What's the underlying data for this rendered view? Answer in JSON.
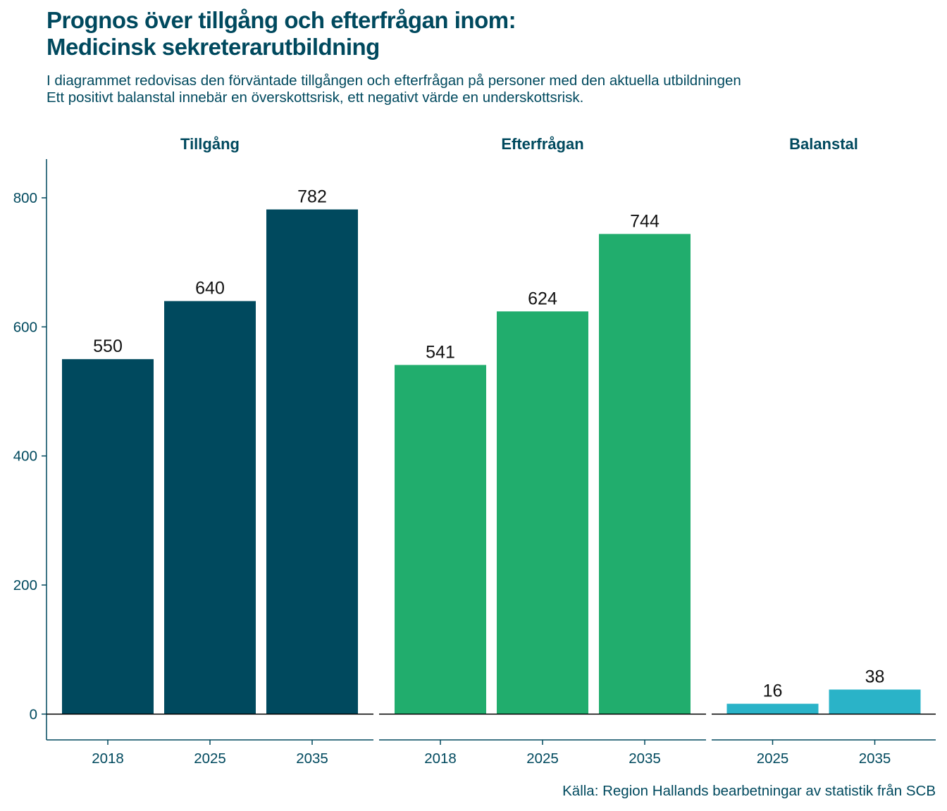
{
  "title_line1": "Prognos över tillgång och efterfrågan inom:",
  "title_line2": "Medicinsk sekreterarutbildning",
  "subtitle_line1": "I diagrammet redovisas den förväntade tillgången och efterfrågan på personer med den aktuella utbildningen",
  "subtitle_line2": "Ett positivt balanstal innebär en överskottsrisk, ett negativt värde en underskottsrisk.",
  "caption": "Källa: Region Hallands bearbetningar av statistik från SCB",
  "chart_data": {
    "type": "bar",
    "ylim": [
      -40,
      860
    ],
    "yticks": [
      0,
      200,
      400,
      600,
      800
    ],
    "grid": false,
    "facets": [
      {
        "name": "Tillgång",
        "color": "#00495e",
        "categories": [
          "2018",
          "2025",
          "2035"
        ],
        "values": [
          550,
          640,
          782
        ]
      },
      {
        "name": "Efterfrågan",
        "color": "#21ad6d",
        "categories": [
          "2018",
          "2025",
          "2035"
        ],
        "values": [
          541,
          624,
          744
        ]
      },
      {
        "name": "Balanstal",
        "color": "#2ab3c8",
        "categories": [
          "2025",
          "2035"
        ],
        "values": [
          16,
          38
        ]
      }
    ]
  }
}
